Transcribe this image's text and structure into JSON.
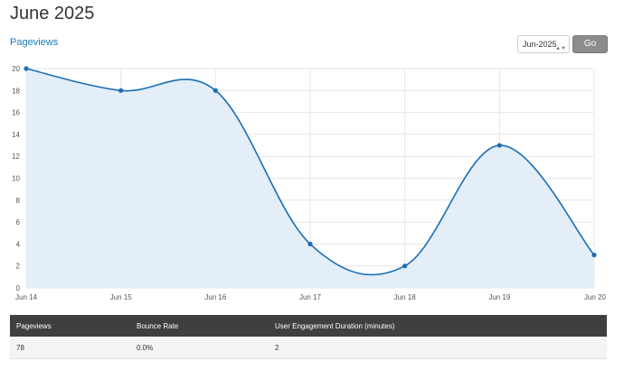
{
  "page": {
    "title": "June 2025",
    "section_link": "Pageviews"
  },
  "controls": {
    "month_select_value": "Jun-2025",
    "go_label": "Go"
  },
  "chart_data": {
    "type": "area",
    "x": [
      "Jun 14",
      "Jun 15",
      "Jun 16",
      "Jun 17",
      "Jun 18",
      "Jun 19",
      "Jun 20"
    ],
    "values": [
      20,
      18,
      18,
      4,
      2,
      13,
      3
    ],
    "ylim": [
      0,
      20
    ],
    "yticks": [
      0,
      2,
      4,
      6,
      8,
      10,
      12,
      14,
      16,
      18,
      20
    ],
    "grid": true,
    "line_color": "#1a6db5",
    "fill_color": "#e3eef8"
  },
  "table": {
    "headers": [
      "Pageviews",
      "Bounce Rate",
      "User Engagement Duration (minutes)"
    ],
    "rows": [
      [
        "78",
        "0.0%",
        "2"
      ]
    ]
  }
}
